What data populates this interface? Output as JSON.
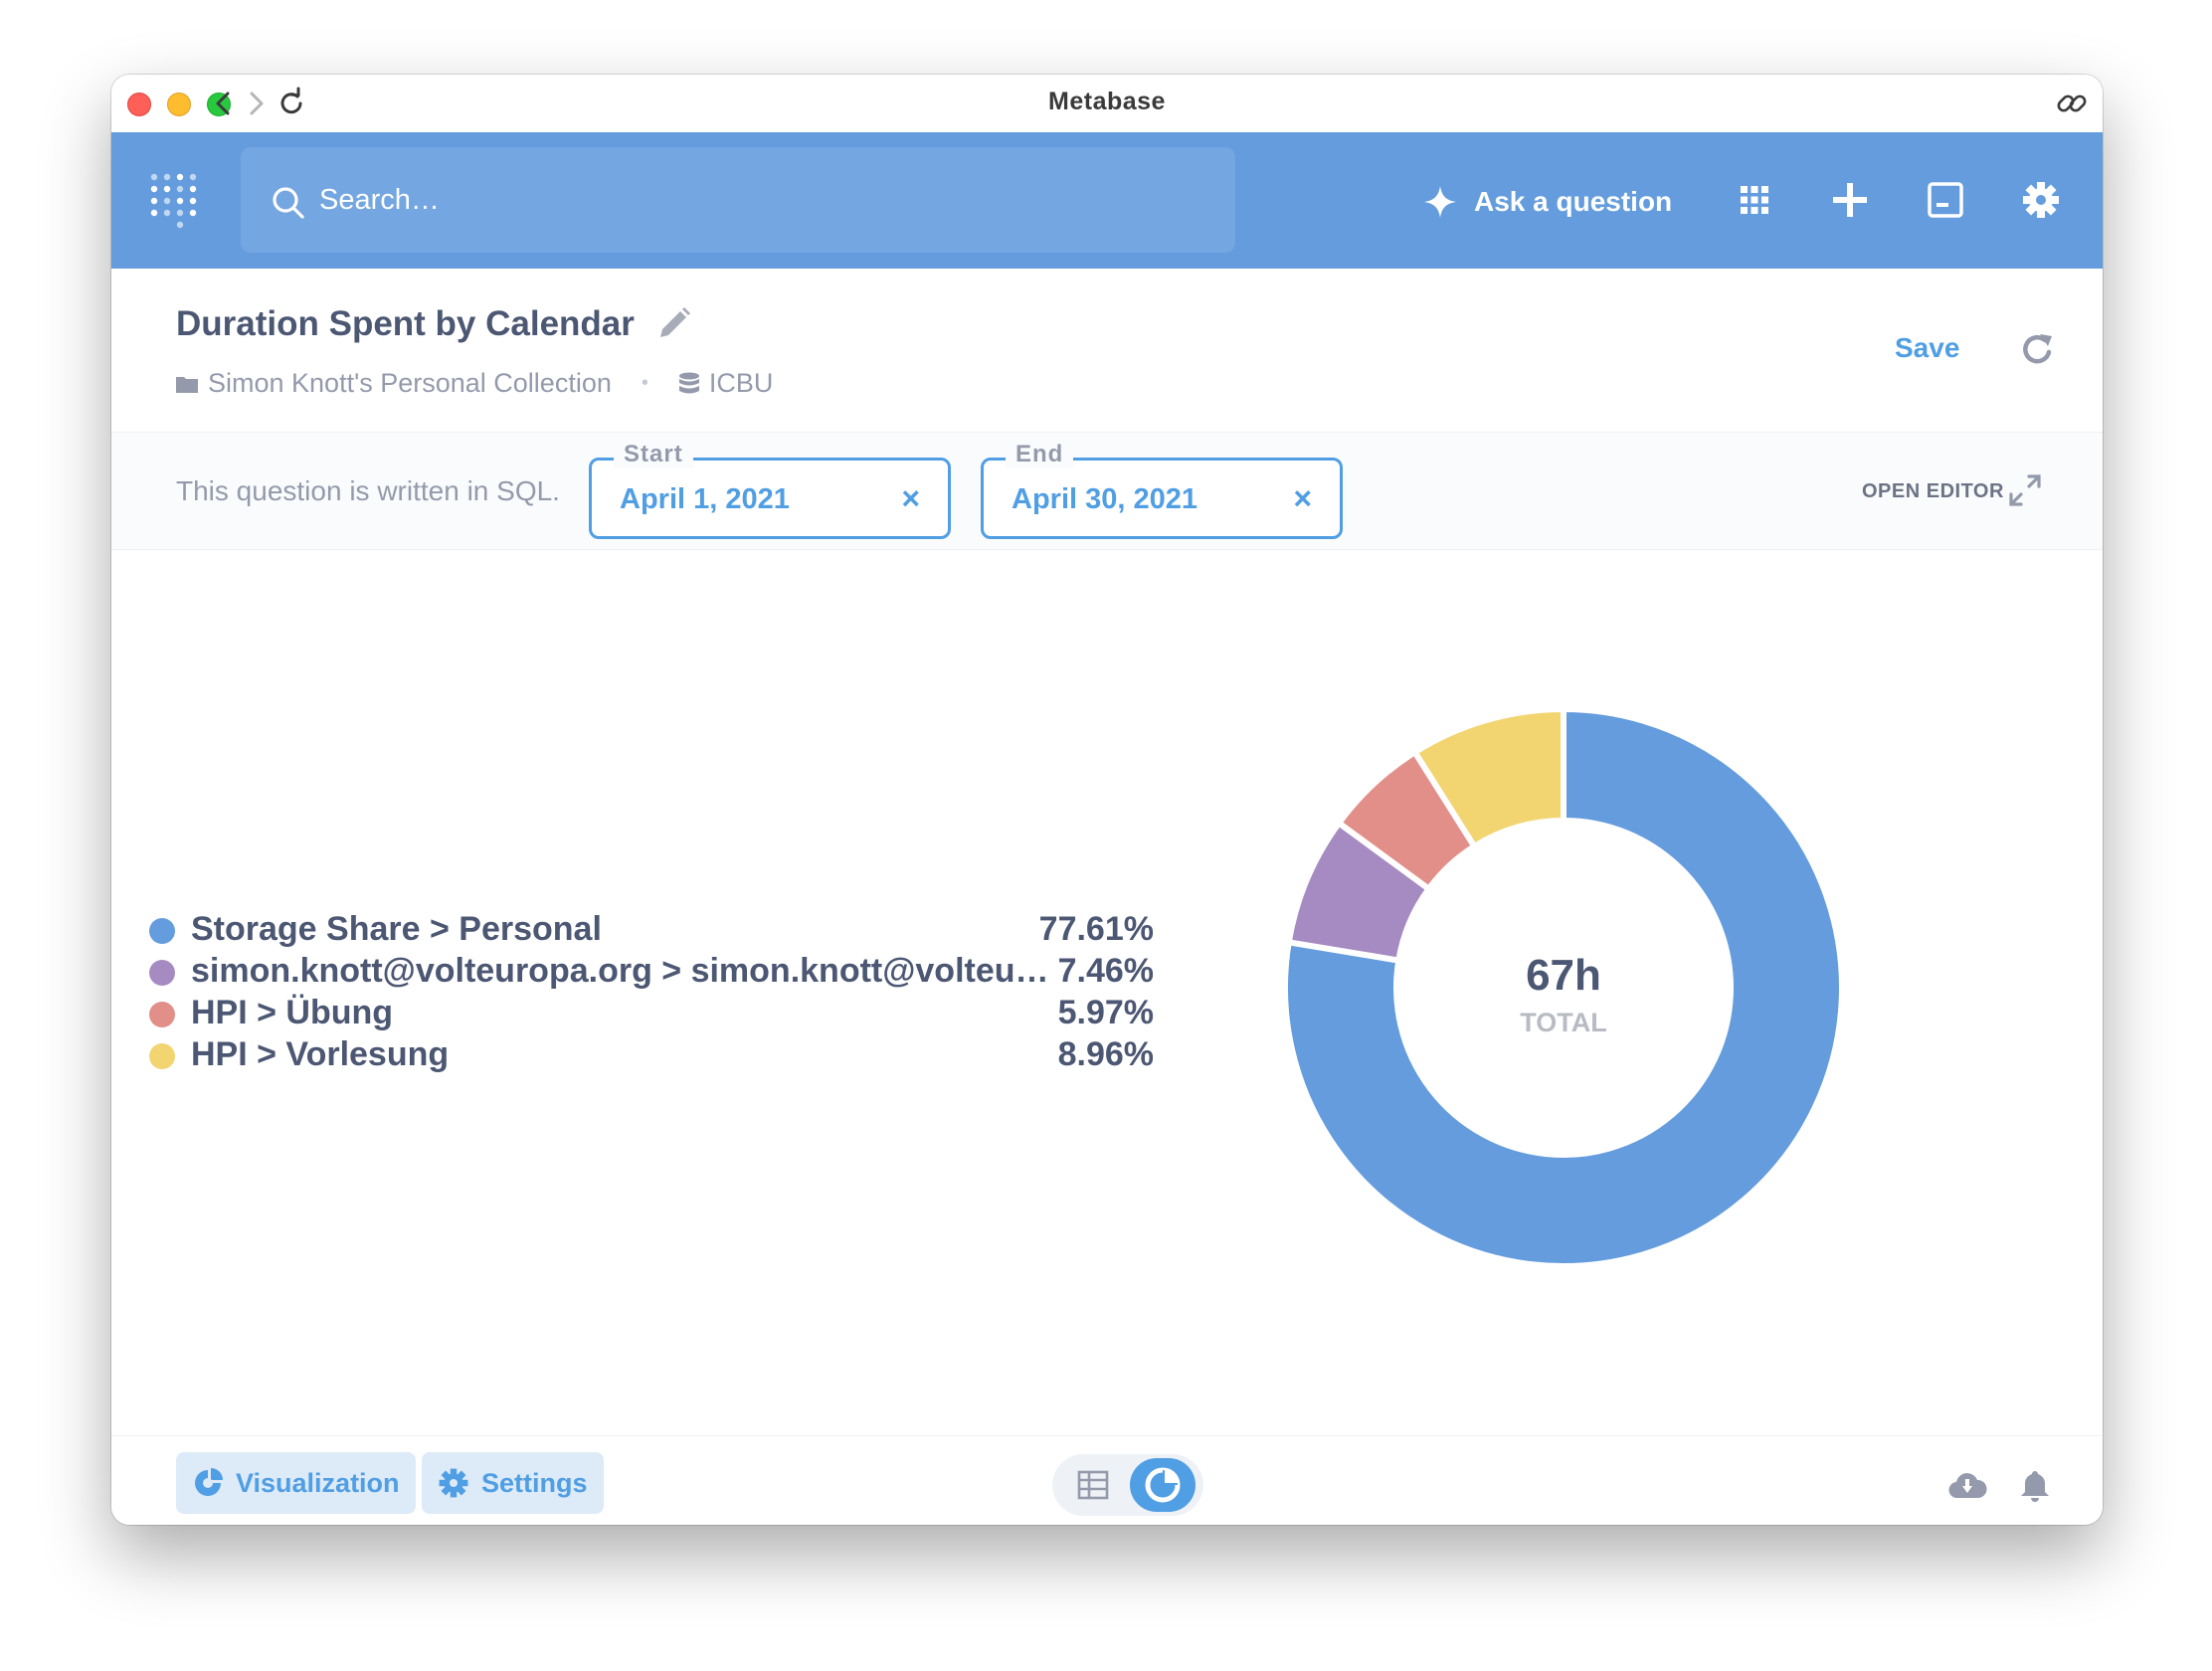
{
  "window": {
    "title": "Metabase"
  },
  "header": {
    "search_placeholder": "Search…",
    "ask_label": "Ask a question"
  },
  "question": {
    "title": "Duration Spent by Calendar",
    "collection": "Simon Knott's Personal Collection",
    "database": "ICBU",
    "save_label": "Save"
  },
  "sqlbar": {
    "note": "This question is written in SQL.",
    "open_editor_label": "OPEN EDITOR",
    "params": [
      {
        "label": "Start",
        "value": "April 1, 2021"
      },
      {
        "label": "End",
        "value": "April 30, 2021"
      }
    ],
    "clear_glyph": "×"
  },
  "chart_data": {
    "type": "pie",
    "total_value": "67h",
    "total_label": "TOTAL",
    "slices": [
      {
        "name": "Storage Share > Personal",
        "percent": 77.61,
        "label": "77.61%",
        "color": "#649cdd"
      },
      {
        "name": "simon.knott@volteuropa.org > simon.knott@volteu…",
        "percent": 7.46,
        "label": "7.46%",
        "color": "#a68bc3"
      },
      {
        "name": "HPI > Übung",
        "percent": 5.97,
        "label": "5.97%",
        "color": "#e28f8a"
      },
      {
        "name": "HPI > Vorlesung",
        "percent": 8.96,
        "label": "8.96%",
        "color": "#f2d571"
      }
    ]
  },
  "footer": {
    "visualization_label": "Visualization",
    "settings_label": "Settings"
  },
  "colors": {
    "brand": "#509ee3",
    "appbar": "#649cdd",
    "text": "#4c5773"
  }
}
